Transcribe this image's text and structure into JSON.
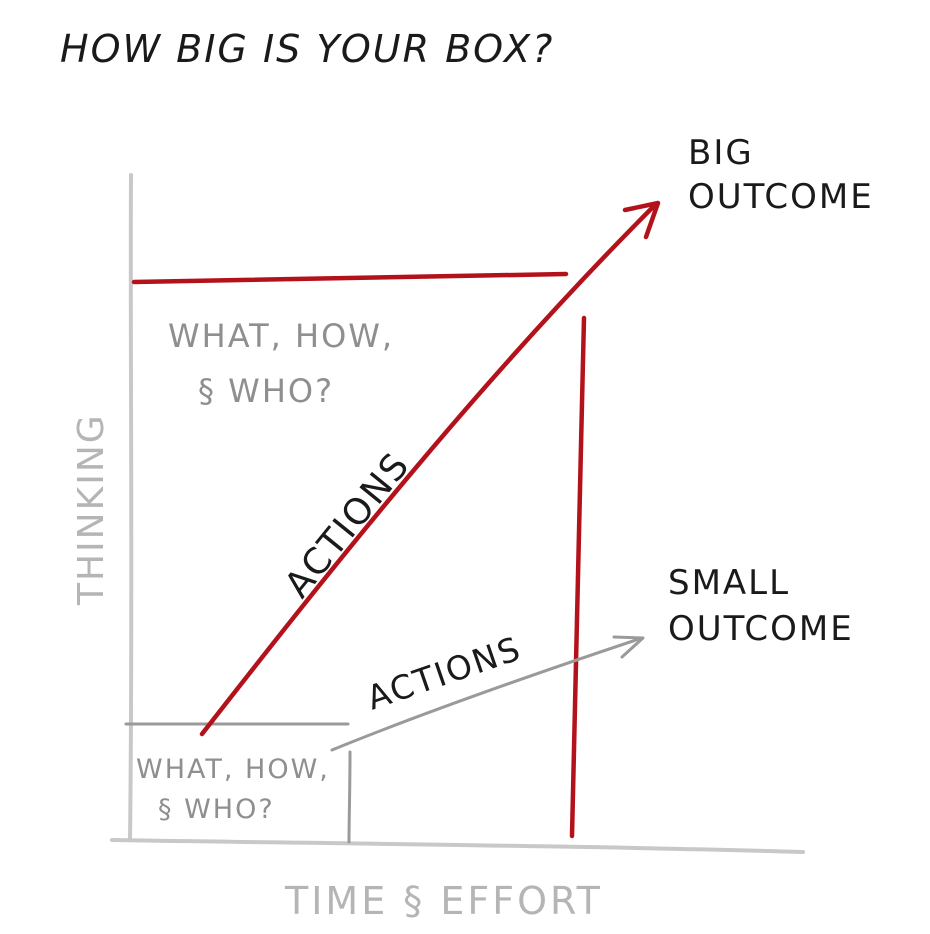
{
  "title": "HOW BIG IS YOUR BOX?",
  "axes": {
    "y_label": "THINKING",
    "x_label": "TIME § EFFORT"
  },
  "big_box": {
    "text_line1": "WHAT, HOW,",
    "text_line2": "§ WHO?"
  },
  "small_box": {
    "text_line1": "WHAT, HOW,",
    "text_line2": "§ WHO?"
  },
  "arrows": {
    "big_label": "ACTIONS",
    "small_label": "ACTIONS"
  },
  "outcomes": {
    "big_line1": "BIG",
    "big_line2": "OUTCOME",
    "small_line1": "SMALL",
    "small_line2": "OUTCOME"
  },
  "colors": {
    "red": "#b4121b",
    "axis_gray": "#c8c8c8",
    "box_gray": "#9a9a9a",
    "ink": "#1a1a1a"
  }
}
